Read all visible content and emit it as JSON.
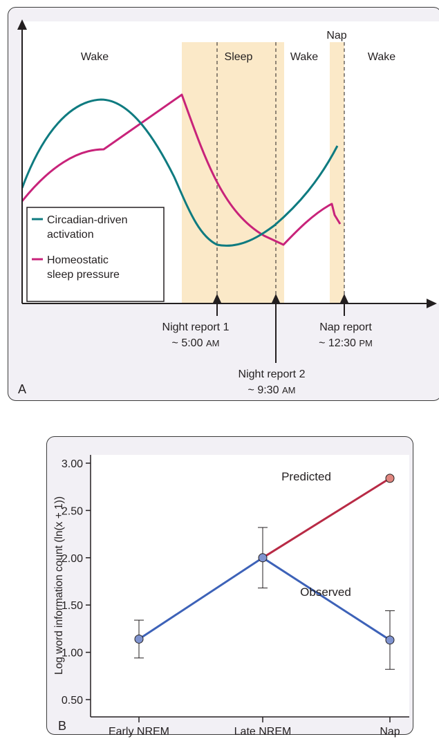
{
  "panel_a": {
    "letter": "A",
    "phase_labels": [
      "Wake",
      "Sleep",
      "Wake",
      "Nap",
      "Wake"
    ],
    "legend": {
      "circadian": [
        "Circadian-driven",
        "activation"
      ],
      "homeostatic": [
        "Homeostatic",
        "sleep pressure"
      ]
    },
    "reports": {
      "night1": {
        "line1": "Night report 1",
        "time": "~ 5:00",
        "ampm": "AM"
      },
      "night2": {
        "line1": "Night report 2",
        "time": "~ 9:30",
        "ampm": "AM"
      },
      "nap": {
        "line1": "Nap report",
        "time": "~ 12:30",
        "ampm": "PM"
      }
    },
    "colors": {
      "circadian": "#0f7b80",
      "homeostatic": "#c8237a",
      "sleep_band": "#fbe9c8",
      "plot_bg": "#ffffff"
    }
  },
  "panel_b": {
    "letter": "B",
    "annotations": {
      "predicted": "Predicted",
      "observed": "Observed"
    },
    "colors": {
      "observed": "#3d62b8",
      "predicted": "#b82a45",
      "observed_marker": "#7f93cf",
      "predicted_marker": "#e0867f"
    }
  },
  "chart_data": {
    "type": "line",
    "categories": [
      "Early NREM",
      "Late NREM",
      "Nap"
    ],
    "ylabel": "Log word information count (ln(x + 1))",
    "xlabel": "",
    "ylim": [
      0.4,
      3.05
    ],
    "yticks": [
      "0.50",
      "1.00",
      "1.50",
      "2.00",
      "2.50",
      "3.00"
    ],
    "yticks_values": [
      0.5,
      1.0,
      1.5,
      2.0,
      2.5,
      3.0
    ],
    "series": [
      {
        "name": "Observed",
        "values": [
          1.14,
          2.0,
          1.13
        ],
        "err_low": [
          0.94,
          1.68,
          0.82
        ],
        "err_high": [
          1.34,
          2.32,
          1.44
        ]
      },
      {
        "name": "Predicted",
        "values": [
          null,
          2.0,
          2.84
        ]
      }
    ]
  }
}
